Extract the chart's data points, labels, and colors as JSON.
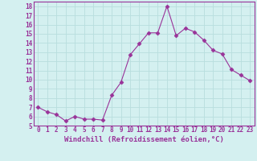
{
  "x": [
    0,
    1,
    2,
    3,
    4,
    5,
    6,
    7,
    8,
    9,
    10,
    11,
    12,
    13,
    14,
    15,
    16,
    17,
    18,
    19,
    20,
    21,
    22,
    23
  ],
  "y": [
    7.0,
    6.5,
    6.2,
    5.5,
    6.0,
    5.7,
    5.7,
    5.6,
    8.3,
    9.7,
    12.7,
    13.9,
    15.1,
    15.1,
    18.0,
    14.8,
    15.6,
    15.2,
    14.3,
    13.2,
    12.8,
    11.1,
    10.5,
    9.9
  ],
  "xlabel": "Windchill (Refroidissement éolien,°C)",
  "xlim": [
    -0.5,
    23.5
  ],
  "ylim": [
    5,
    18.5
  ],
  "yticks": [
    5,
    6,
    7,
    8,
    9,
    10,
    11,
    12,
    13,
    14,
    15,
    16,
    17,
    18
  ],
  "xticks": [
    0,
    1,
    2,
    3,
    4,
    5,
    6,
    7,
    8,
    9,
    10,
    11,
    12,
    13,
    14,
    15,
    16,
    17,
    18,
    19,
    20,
    21,
    22,
    23
  ],
  "line_color": "#993399",
  "marker": "D",
  "bg_color": "#d4f0f0",
  "grid_color": "#b8dede",
  "label_color": "#993399",
  "spine_color": "#993399",
  "tick_font_size": 5.5,
  "xlabel_font_size": 6.5
}
